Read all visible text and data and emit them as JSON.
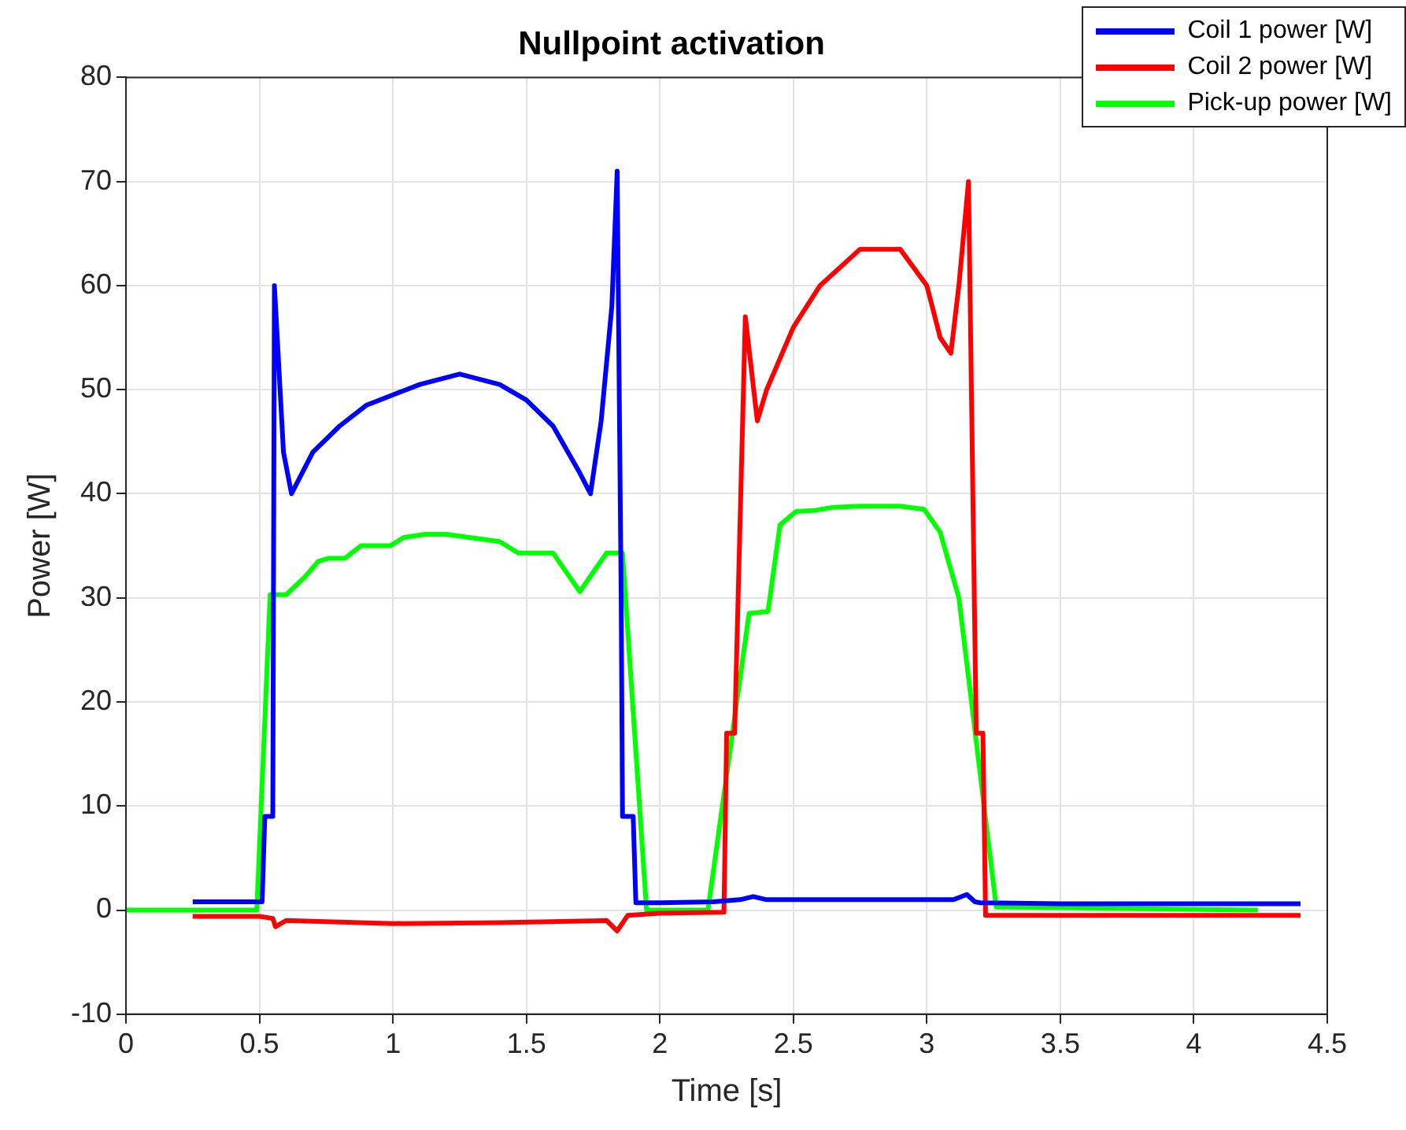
{
  "chart_data": {
    "type": "line",
    "title": "Nullpoint activation",
    "xlabel": "Time [s]",
    "ylabel": "Power [W]",
    "xlim": [
      0,
      4.5
    ],
    "xticks": [
      0,
      0.5,
      1,
      1.5,
      2,
      2.5,
      3,
      3.5,
      4,
      4.5
    ],
    "ylim": [
      -10,
      80
    ],
    "yticks": [
      -10,
      0,
      10,
      20,
      30,
      40,
      50,
      60,
      70,
      80
    ],
    "grid": true,
    "legend": "top right",
    "marker": "none",
    "line_style": "solid",
    "series": [
      {
        "name": "Coil 1 power [W]",
        "color": "#0000ff",
        "x": [
          0.25,
          0.5,
          0.51,
          0.52,
          0.55,
          0.556,
          0.59,
          0.62,
          0.7,
          0.8,
          0.9,
          1.0,
          1.1,
          1.25,
          1.4,
          1.5,
          1.6,
          1.7,
          1.74,
          1.78,
          1.82,
          1.84,
          1.855,
          1.86,
          1.9,
          1.91,
          2.0,
          2.2,
          2.3,
          2.35,
          2.4,
          2.6,
          2.8,
          3.0,
          3.1,
          3.15,
          3.18,
          3.2,
          3.5,
          4.0,
          4.4
        ],
        "values": [
          0.8,
          0.8,
          0.8,
          9,
          9,
          60,
          44,
          40,
          44,
          46.5,
          48.5,
          49.5,
          50.5,
          51.5,
          50.5,
          49,
          46.5,
          42,
          40,
          47,
          58,
          71,
          30,
          9,
          9,
          0.7,
          0.7,
          0.8,
          1.0,
          1.3,
          1.0,
          1.0,
          1.0,
          1.0,
          1.0,
          1.5,
          0.8,
          0.7,
          0.6,
          0.6,
          0.6
        ]
      },
      {
        "name": "Coil 2 power [W]",
        "color": "#ff0000",
        "x": [
          0.25,
          0.5,
          0.55,
          0.56,
          0.6,
          1.0,
          1.4,
          1.8,
          1.84,
          1.88,
          2.0,
          2.24,
          2.25,
          2.28,
          2.32,
          2.365,
          2.4,
          2.5,
          2.6,
          2.75,
          2.9,
          3.0,
          3.05,
          3.09,
          3.12,
          3.156,
          3.185,
          3.21,
          3.22,
          3.5,
          4.0,
          4.4
        ],
        "values": [
          -0.6,
          -0.6,
          -0.8,
          -1.6,
          -1.0,
          -1.3,
          -1.2,
          -1.0,
          -2.0,
          -0.5,
          -0.3,
          -0.2,
          17,
          17,
          57,
          47,
          50,
          56,
          60,
          63.5,
          63.5,
          60,
          55,
          53.5,
          60,
          70,
          17,
          17,
          -0.5,
          -0.5,
          -0.5,
          -0.5
        ]
      },
      {
        "name": "Pick-up power [W]",
        "color": "#00ff00",
        "x": [
          0,
          0.49,
          0.54,
          0.6,
          0.67,
          0.72,
          0.76,
          0.82,
          0.88,
          0.99,
          1.04,
          1.12,
          1.2,
          1.4,
          1.47,
          1.6,
          1.7,
          1.8,
          1.86,
          1.95,
          2.18,
          2.334,
          2.405,
          2.45,
          2.51,
          2.58,
          2.65,
          2.75,
          2.9,
          2.99,
          3.05,
          3.12,
          3.26,
          4.24
        ],
        "values": [
          0,
          0,
          30.3,
          30.3,
          32,
          33.5,
          33.8,
          33.8,
          35,
          35,
          35.8,
          36.1,
          36.1,
          35.4,
          34.3,
          34.3,
          30.6,
          34.3,
          34.3,
          0,
          0,
          28.5,
          28.7,
          37,
          38.3,
          38.4,
          38.7,
          38.8,
          38.8,
          38.5,
          36.3,
          30,
          0.3,
          0
        ]
      }
    ]
  }
}
